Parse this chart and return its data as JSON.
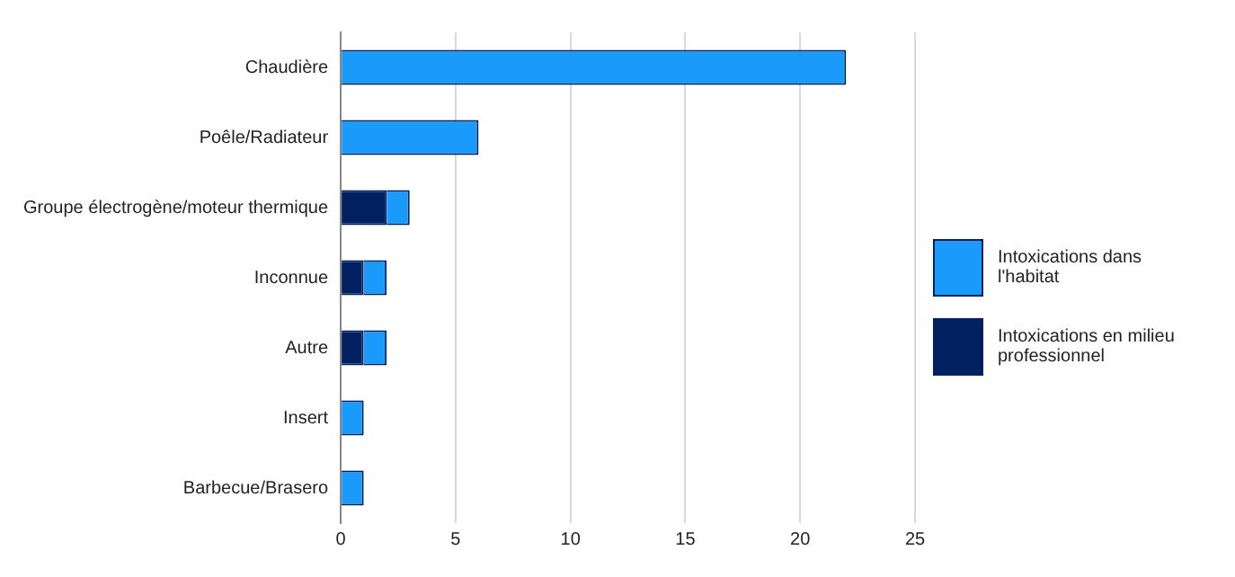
{
  "chart_data": {
    "type": "bar",
    "orientation": "horizontal",
    "stacked": true,
    "categories": [
      "Chaudière",
      "Poêle/Radiateur",
      "Groupe électrogène/moteur thermique",
      "Inconnue",
      "Autre",
      "Insert",
      "Barbecue/Brasero"
    ],
    "series": [
      {
        "name": "Intoxications en milieu professionnel",
        "color": "#002060",
        "values": [
          0,
          0,
          2,
          1,
          1,
          0,
          0
        ]
      },
      {
        "name": "Intoxications dans l'habitat",
        "color": "#1a9bfc",
        "values": [
          22,
          6,
          1,
          1,
          1,
          1,
          1
        ]
      }
    ],
    "xlim": [
      0,
      25
    ],
    "xticks": [
      0,
      5,
      10,
      15,
      20,
      25
    ],
    "grid": "x",
    "legend": "right"
  }
}
